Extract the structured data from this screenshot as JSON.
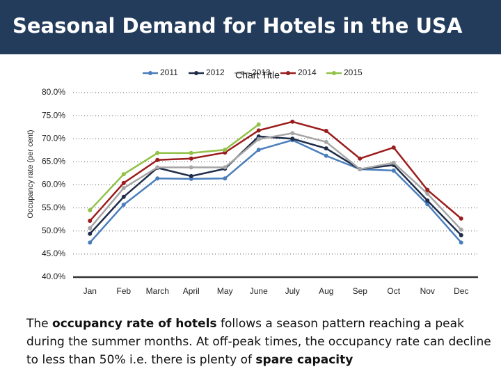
{
  "title": "Seasonal Demand for Hotels in the USA",
  "chart_data": {
    "type": "line",
    "title": "Chart Title",
    "y_label": "Occupancy rate (per cent)",
    "categories": [
      "Jan",
      "Feb",
      "March",
      "April",
      "May",
      "June",
      "July",
      "Aug",
      "Sep",
      "Oct",
      "Nov",
      "Dec"
    ],
    "series": [
      {
        "name": "2011",
        "color": "#4a7ebb",
        "values": [
          47.5,
          55.7,
          61.4,
          61.3,
          61.4,
          67.6,
          69.7,
          66.3,
          63.4,
          63.1,
          55.8,
          47.5
        ]
      },
      {
        "name": "2012",
        "color": "#1f2d4a",
        "values": [
          49.4,
          57.4,
          63.7,
          61.9,
          63.5,
          70.5,
          70.0,
          67.9,
          63.4,
          64.3,
          56.6,
          49.1
        ]
      },
      {
        "name": "2013",
        "color": "#a6a6a6",
        "values": [
          50.6,
          59.3,
          63.8,
          63.8,
          63.8,
          69.9,
          71.2,
          69.3,
          63.4,
          64.8,
          58.1,
          50.3
        ]
      },
      {
        "name": "2014",
        "color": "#9b1c1c",
        "values": [
          52.2,
          60.4,
          65.4,
          65.7,
          67.0,
          71.8,
          73.7,
          71.7,
          65.7,
          68.1,
          58.9,
          52.7
        ]
      },
      {
        "name": "2015",
        "color": "#92c147",
        "values": [
          54.5,
          62.3,
          66.9,
          66.9,
          67.6,
          73.1,
          null,
          null,
          null,
          null,
          null,
          null
        ]
      }
    ],
    "ylim": [
      40,
      80
    ],
    "yticks": [
      {
        "value": 40,
        "label": "40.0%"
      },
      {
        "value": 45,
        "label": "45.0%"
      },
      {
        "value": 50,
        "label": "50.0%"
      },
      {
        "value": 55,
        "label": "55.0%"
      },
      {
        "value": 60,
        "label": "60.0%"
      },
      {
        "value": 65,
        "label": "65.0%"
      },
      {
        "value": 70,
        "label": "70.0%"
      },
      {
        "value": 75,
        "label": "75.0%"
      },
      {
        "value": 80,
        "label": "80.0%"
      }
    ],
    "grid": true,
    "legend": "top"
  },
  "caption": [
    {
      "text": "The ",
      "bold": false
    },
    {
      "text": "occupancy rate of hotels",
      "bold": true
    },
    {
      "text": " follows a season pattern reaching a peak during the summer months. At off-peak times, the occupancy rate can decline to less than 50% i.e. there is plenty of ",
      "bold": false
    },
    {
      "text": "spare capacity",
      "bold": true
    }
  ]
}
